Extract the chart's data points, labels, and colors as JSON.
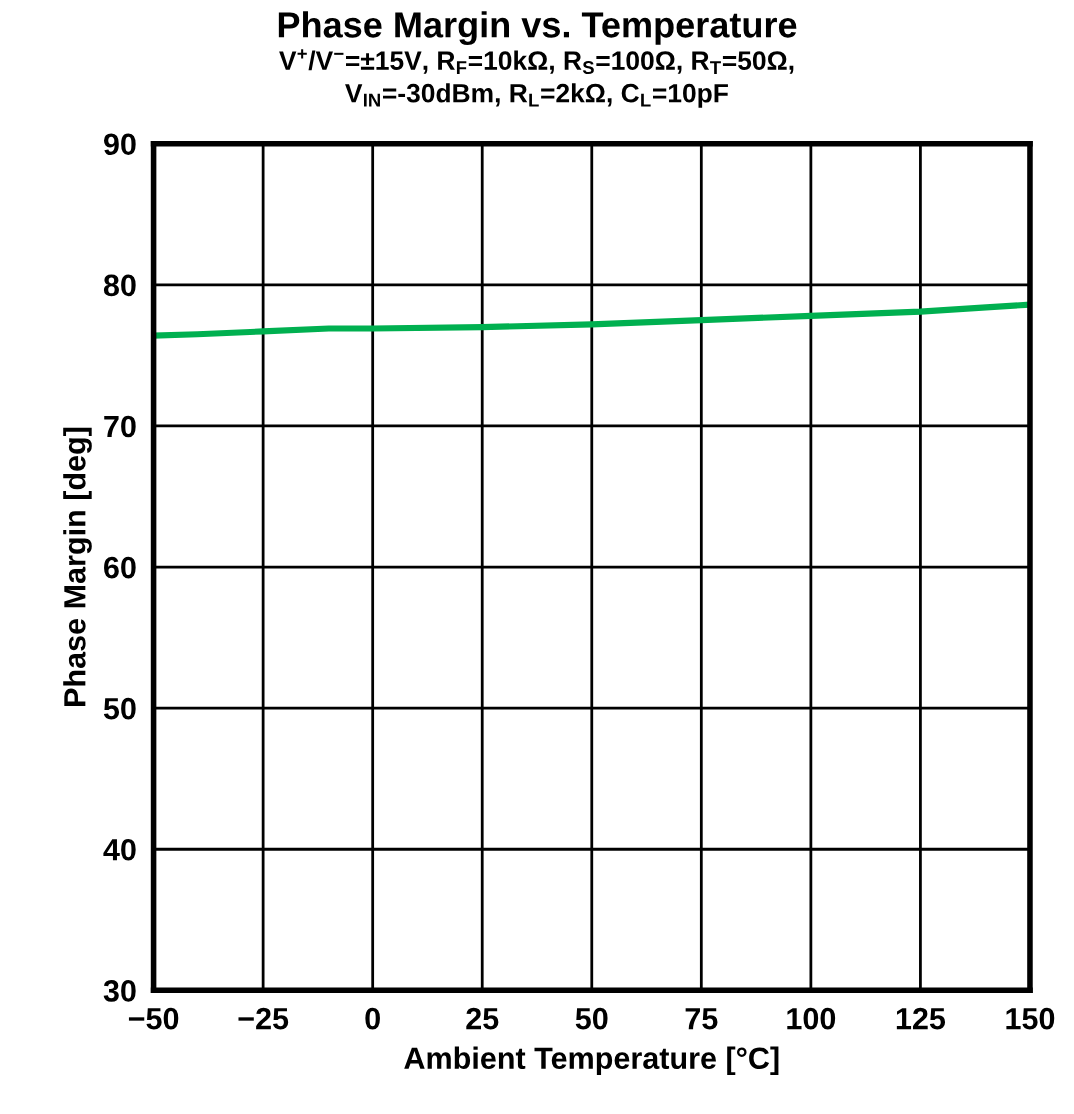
{
  "chart_data": {
    "type": "line",
    "title": "Phase Margin vs. Temperature",
    "subtitle": "V$^{+}$/V$^{−}$=±15V, R$_{F}$=10kΩ, R$_{S}$=100Ω, R$_{T}$=50Ω,\nV$_{IN}$=-30dBm, R$_{L}$=2kΩ, C$_{L}$=10pF",
    "xlabel": "Ambient Temperature [°C]",
    "ylabel": "Phase Margin [deg]",
    "x": [
      -50,
      -40,
      -25,
      -10,
      0,
      25,
      50,
      75,
      100,
      125,
      140,
      150
    ],
    "series": [
      {
        "color": "#00b050",
        "values": [
          76.4,
          76.5,
          76.7,
          76.9,
          76.9,
          77.0,
          77.2,
          77.5,
          77.8,
          78.1,
          78.4,
          78.6
        ]
      }
    ],
    "xlim": [
      -50,
      150
    ],
    "ylim": [
      30,
      90
    ],
    "xticks": [
      {
        "value": -50,
        "label": "−50"
      },
      {
        "value": -25,
        "label": "−25"
      },
      0,
      25,
      50,
      75,
      100,
      125,
      150
    ],
    "yticks": [
      30,
      40,
      50,
      60,
      70,
      80,
      90
    ],
    "grid": true,
    "marker": "none",
    "line_style": "solid"
  }
}
